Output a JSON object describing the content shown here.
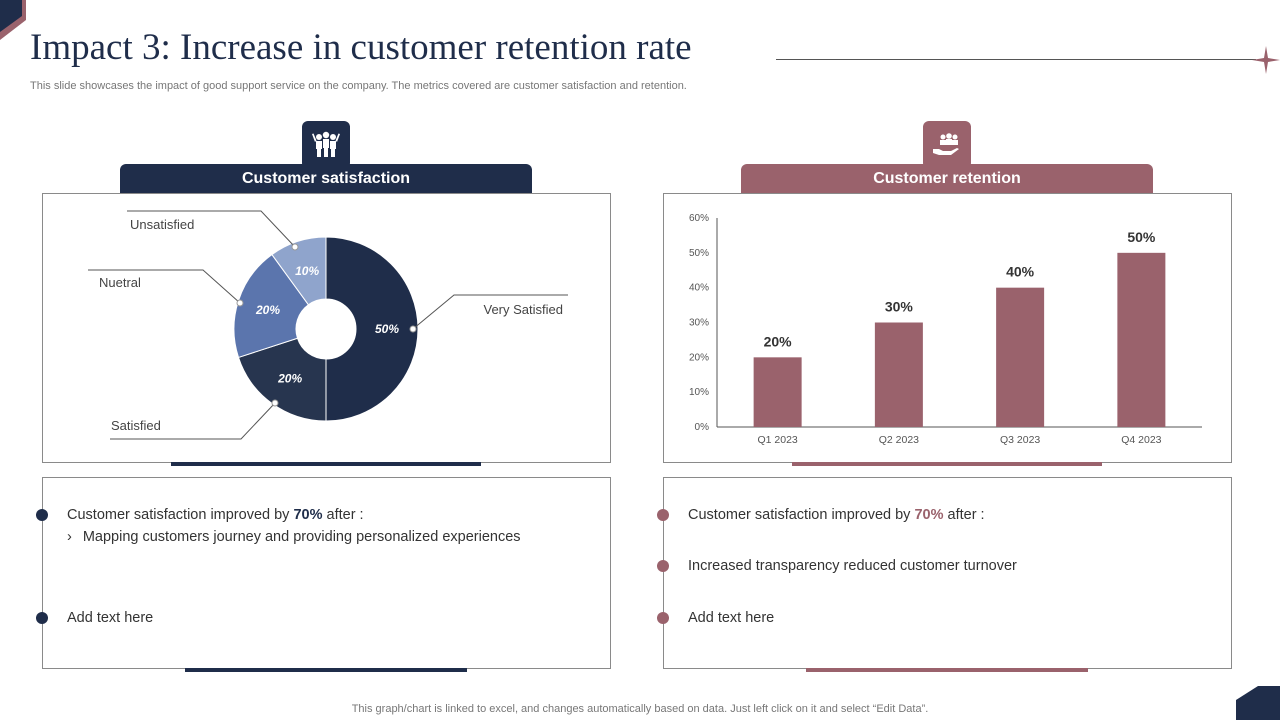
{
  "title": "Impact 3: Increase in customer retention rate",
  "subtitle": "This slide showcases the impact of good support service on the company. The metrics covered are customer satisfaction and retention.",
  "colors": {
    "navy": "#1f2d4a",
    "rose": "#9a626c",
    "navy_mid": "#27354f",
    "blue_mid": "#5b75ad",
    "blue_light": "#8fa4cc"
  },
  "left_section": {
    "header": "Customer satisfaction",
    "icon": "team-celebration-icon",
    "bullets": {
      "b1_prefix": "Customer satisfaction improved by ",
      "b1_highlight": "70%",
      "b1_suffix": " after :",
      "b1_sub_marker": "›",
      "b1_sub": "Mapping customers journey and providing personalized experiences",
      "b2": "Add text here"
    }
  },
  "right_section": {
    "header": "Customer retention",
    "icon": "hand-holding-people-icon",
    "bullets": {
      "b1_prefix": "Customer satisfaction improved by ",
      "b1_highlight": "70%",
      "b1_suffix": " after :",
      "b2": "Increased transparency reduced customer turnover",
      "b3": "Add text here"
    }
  },
  "footer": "This graph/chart is linked to excel,  and changes automatically based on data. Just left click on it and select “Edit Data”.",
  "chart_data": [
    {
      "type": "pie",
      "style": "donut",
      "slices": [
        {
          "label": "Very Satisfied",
          "value": 50,
          "display": "50%",
          "color": "#1f2d4a"
        },
        {
          "label": "Satisfied",
          "value": 20,
          "display": "20%",
          "color": "#27354f"
        },
        {
          "label": "Nuetral",
          "value": 20,
          "display": "20%",
          "color": "#5b75ad"
        },
        {
          "label": "Unsatisfied",
          "value": 10,
          "display": "10%",
          "color": "#8fa4cc"
        }
      ]
    },
    {
      "type": "bar",
      "categories": [
        "Q1 2023",
        "Q2 2023",
        "Q3 2023",
        "Q4 2023"
      ],
      "values": [
        20,
        30,
        40,
        50
      ],
      "data_labels": [
        "20%",
        "30%",
        "40%",
        "50%"
      ],
      "ylim": [
        0,
        60
      ],
      "yticks": [
        "0%",
        "10%",
        "20%",
        "30%",
        "40%",
        "50%",
        "60%"
      ],
      "grid": false,
      "bar_color": "#9a626c"
    }
  ]
}
